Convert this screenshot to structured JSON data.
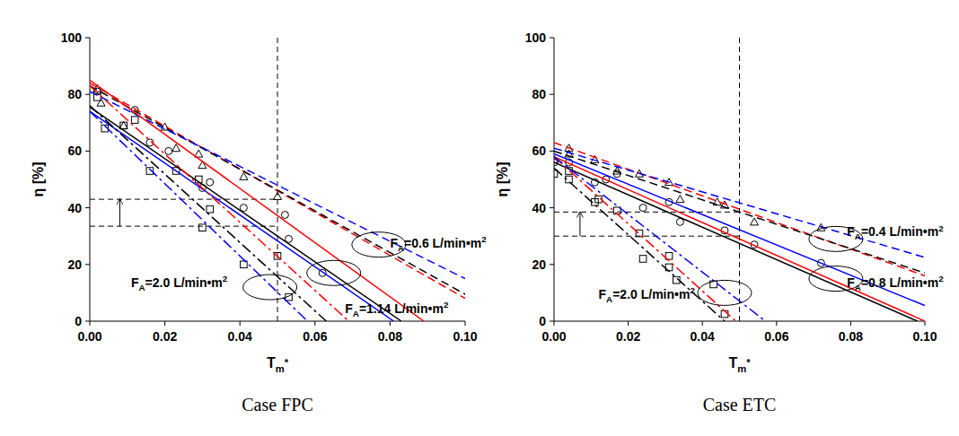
{
  "chart_data": [
    {
      "type": "line",
      "title": "Case FPC",
      "x_label": "Tm*",
      "y_label": "η [%]",
      "xlim": [
        0,
        0.1
      ],
      "ylim": [
        0,
        100
      ],
      "xticks": [
        {
          "value": 0,
          "label": "0.00"
        },
        {
          "value": 0.02,
          "label": "0.02"
        },
        {
          "value": 0.04,
          "label": "0.04"
        },
        {
          "value": 0.06,
          "label": "0.06"
        },
        {
          "value": 0.08,
          "label": "0.08"
        },
        {
          "value": 0.1,
          "label": "0.10"
        }
      ],
      "yticks": [
        0,
        20,
        40,
        60,
        80,
        100
      ],
      "grid": false,
      "vlines": [
        0.05
      ],
      "hlines": [
        43,
        33.5
      ],
      "arrow": {
        "x": 0.008,
        "from": 33.5,
        "to": 43
      },
      "annotations": [
        {
          "text": "FA=0.6 L/min•m2",
          "x": 0.08,
          "y": 26,
          "ellipse_x": 0.077,
          "ellipse_y": 27
        },
        {
          "text": "FA=1.14 L/min•m2",
          "x": 0.068,
          "y": 3,
          "ellipse_x": 0.065,
          "ellipse_y": 17
        },
        {
          "text": "FA=2.0 L/min•m2",
          "x": 0.011,
          "y": 12,
          "ellipse_x": 0.048,
          "ellipse_y": 12
        }
      ],
      "series": [
        {
          "type": "scatter",
          "marker": "triangle",
          "color": "#000000",
          "x": [
            0.002,
            0.003,
            0.009,
            0.02,
            0.023,
            0.029,
            0.03,
            0.041,
            0.05
          ],
          "values": [
            82,
            77,
            69,
            68.5,
            61,
            59,
            55,
            51,
            44
          ]
        },
        {
          "type": "scatter",
          "marker": "circle",
          "color": "#000000",
          "x": [
            0.002,
            0.012,
            0.016,
            0.021,
            0.03,
            0.032,
            0.041,
            0.052,
            0.053,
            0.062
          ],
          "values": [
            81,
            74.5,
            63,
            60,
            47,
            49,
            40,
            37.5,
            29,
            17
          ]
        },
        {
          "type": "scatter",
          "marker": "square",
          "color": "#000000",
          "x": [
            0.002,
            0.004,
            0.009,
            0.012,
            0.016,
            0.023,
            0.029,
            0.03,
            0.032,
            0.041,
            0.05,
            0.053
          ],
          "values": [
            79,
            68,
            69,
            71,
            53,
            53,
            50,
            33,
            39.5,
            20,
            23,
            8.5
          ]
        },
        {
          "type": "line",
          "line_style": "dashed",
          "color": "#ff0000",
          "x": [
            0,
            0.1
          ],
          "values": [
            84,
            8
          ]
        },
        {
          "type": "line",
          "line_style": "dashed",
          "color": "#000000",
          "x": [
            0,
            0.1
          ],
          "values": [
            83,
            9.5
          ]
        },
        {
          "type": "line",
          "line_style": "dashed",
          "color": "#0000ff",
          "x": [
            0,
            0.1
          ],
          "values": [
            81,
            15
          ]
        },
        {
          "type": "line",
          "line_style": "solid",
          "color": "#ff0000",
          "x": [
            0,
            0.089
          ],
          "values": [
            85,
            0
          ]
        },
        {
          "type": "line",
          "line_style": "solid",
          "color": "#000000",
          "x": [
            0,
            0.083
          ],
          "values": [
            75.5,
            0
          ]
        },
        {
          "type": "line",
          "line_style": "solid",
          "color": "#0000ff",
          "x": [
            0,
            0.081
          ],
          "values": [
            74,
            0
          ]
        },
        {
          "type": "line",
          "line_style": "dashdot",
          "color": "#ff0000",
          "x": [
            0,
            0.069
          ],
          "values": [
            83,
            0
          ]
        },
        {
          "type": "line",
          "line_style": "dashdot",
          "color": "#000000",
          "x": [
            0,
            0.063
          ],
          "values": [
            76,
            0
          ]
        },
        {
          "type": "line",
          "line_style": "dashdot",
          "color": "#0000ff",
          "x": [
            0,
            0.058
          ],
          "values": [
            74,
            0
          ]
        }
      ]
    },
    {
      "type": "line",
      "title": "Case ETC",
      "x_label": "Tm*",
      "y_label": "η [%]",
      "xlim": [
        0,
        0.1
      ],
      "ylim": [
        0,
        100
      ],
      "xticks": [
        {
          "value": 0,
          "label": "0.00"
        },
        {
          "value": 0.02,
          "label": "0.02"
        },
        {
          "value": 0.04,
          "label": "0.04"
        },
        {
          "value": 0.06,
          "label": "0.06"
        },
        {
          "value": 0.08,
          "label": "0.08"
        },
        {
          "value": 0.1,
          "label": "0.10"
        }
      ],
      "yticks": [
        0,
        20,
        40,
        60,
        80,
        100
      ],
      "grid": false,
      "vlines": [
        0.05
      ],
      "hlines": [
        38.5,
        30
      ],
      "arrow": {
        "x": 0.007,
        "from": 30,
        "to": 38.5
      },
      "annotations": [
        {
          "text": "FA=0.4 L/min•m2",
          "x": 0.079,
          "y": 30,
          "ellipse_x": 0.076,
          "ellipse_y": 29
        },
        {
          "text": "FA=0.8 L/min•m2",
          "x": 0.079,
          "y": 12,
          "ellipse_x": 0.076,
          "ellipse_y": 15
        },
        {
          "text": "FA=2.0 L/min•m2",
          "x": 0.012,
          "y": 8,
          "ellipse_x": 0.046,
          "ellipse_y": 10
        }
      ],
      "series": [
        {
          "type": "scatter",
          "marker": "triangle",
          "color": "#000000",
          "x": [
            0,
            0.004,
            0.004,
            0.011,
            0.017,
            0.023,
            0.031,
            0.034,
            0.044,
            0.046,
            0.054,
            0.072
          ],
          "values": [
            57,
            61,
            59,
            57,
            53,
            52,
            49,
            43,
            42,
            41,
            35,
            33
          ]
        },
        {
          "type": "scatter",
          "marker": "circle",
          "color": "#000000",
          "x": [
            0,
            0.004,
            0.011,
            0.014,
            0.017,
            0.024,
            0.031,
            0.034,
            0.046,
            0.054,
            0.072
          ],
          "values": [
            56,
            56,
            49,
            50,
            52,
            40,
            42,
            35,
            32,
            27,
            20.5
          ]
        },
        {
          "type": "scatter",
          "marker": "square",
          "color": "#000000",
          "x": [
            0,
            0.004,
            0.004,
            0.011,
            0.012,
            0.017,
            0.023,
            0.024,
            0.031,
            0.031,
            0.033,
            0.043,
            0.046
          ],
          "values": [
            52,
            50,
            53,
            42,
            43,
            39,
            31,
            22,
            23,
            19,
            14.5,
            13,
            2.5
          ]
        },
        {
          "type": "line",
          "line_style": "dashed",
          "color": "#ff0000",
          "x": [
            0,
            0.1
          ],
          "values": [
            63,
            16
          ]
        },
        {
          "type": "line",
          "line_style": "dashed",
          "color": "#000000",
          "x": [
            0,
            0.1
          ],
          "values": [
            60,
            17
          ]
        },
        {
          "type": "line",
          "line_style": "dashed",
          "color": "#0000ff",
          "x": [
            0,
            0.1
          ],
          "values": [
            61,
            22.5
          ]
        },
        {
          "type": "line",
          "line_style": "solid",
          "color": "#ff0000",
          "x": [
            0,
            0.1
          ],
          "values": [
            58,
            0
          ]
        },
        {
          "type": "line",
          "line_style": "solid",
          "color": "#000000",
          "x": [
            0,
            0.098
          ],
          "values": [
            56,
            0
          ]
        },
        {
          "type": "line",
          "line_style": "solid",
          "color": "#0000ff",
          "x": [
            0,
            0.1
          ],
          "values": [
            59,
            5.5
          ]
        },
        {
          "type": "line",
          "line_style": "dashdot",
          "color": "#ff0000",
          "x": [
            0,
            0.049
          ],
          "values": [
            58,
            0
          ]
        },
        {
          "type": "line",
          "line_style": "dashdot",
          "color": "#000000",
          "x": [
            0,
            0.046
          ],
          "values": [
            54,
            0
          ]
        },
        {
          "type": "line",
          "line_style": "dashdot",
          "color": "#0000ff",
          "x": [
            0,
            0.057
          ],
          "values": [
            58,
            0
          ]
        }
      ]
    }
  ]
}
